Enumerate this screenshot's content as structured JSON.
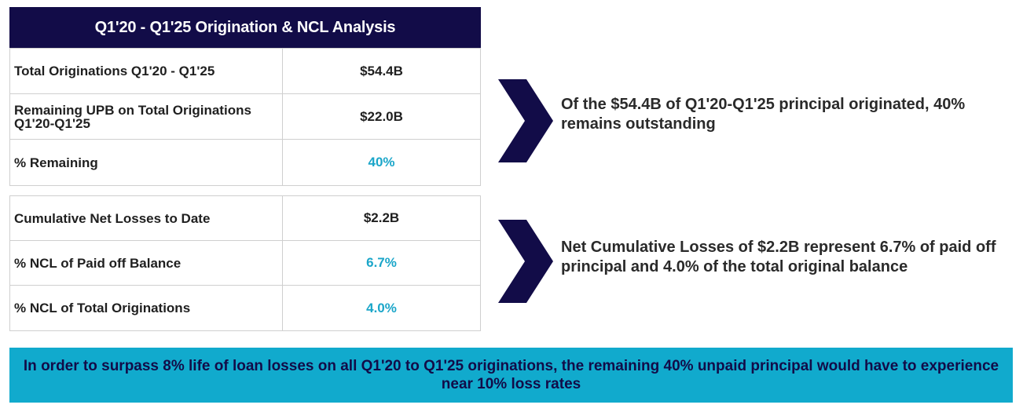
{
  "title": "Q1'20 - Q1'25 Origination & NCL Analysis",
  "originations_table": [
    {
      "label": "Total Originations Q1'20 - Q1'25",
      "value": "$54.4B",
      "accent": false
    },
    {
      "label": "Remaining UPB on Total Originations Q1'20-Q1'25",
      "value": "$22.0B",
      "accent": false
    },
    {
      "label": "% Remaining",
      "value": "40%",
      "accent": true
    }
  ],
  "losses_table": [
    {
      "label": "Cumulative Net Losses to Date",
      "value": "$2.2B",
      "accent": false
    },
    {
      "label": "% NCL of Paid off Balance",
      "value": "6.7%",
      "accent": true
    },
    {
      "label": "% NCL of Total Originations",
      "value": "4.0%",
      "accent": true
    }
  ],
  "callouts": [
    "Of the $54.4B of Q1'20-Q1'25 principal originated, 40% remains outstanding",
    "Net Cumulative Losses of $2.2B represent 6.7% of paid off principal and 4.0% of the total original balance"
  ],
  "banner": "In order to surpass 8% life of loan losses on all Q1'20 to Q1'25 originations, the remaining 40% unpaid principal would have to experience near 10% loss rates",
  "icons": {
    "arrow": "chevron-right-icon"
  },
  "colors": {
    "navy": "#120c48",
    "teal": "#11aacd",
    "accent_text": "#1ba6c9"
  }
}
